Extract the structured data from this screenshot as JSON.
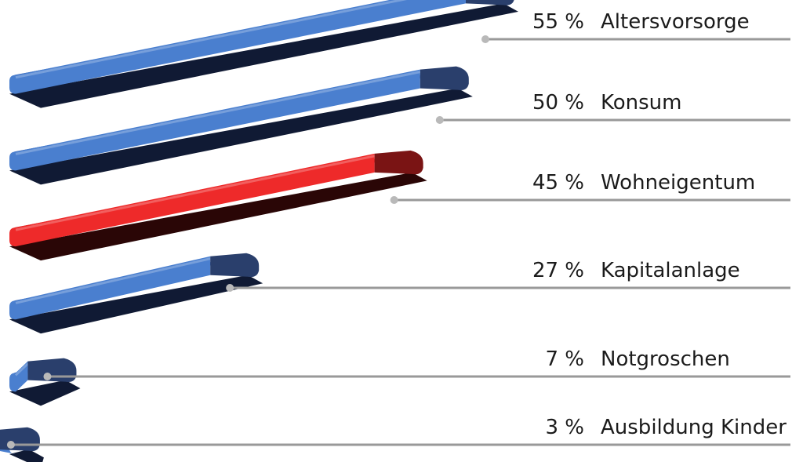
{
  "chart_data": {
    "type": "bar",
    "orientation": "horizontal",
    "categories": [
      "Altersvorsorge",
      "Konsum",
      "Wohneigentum",
      "Kapitalanlage",
      "Notgroschen",
      "Ausbildung Kinder"
    ],
    "values": [
      55,
      50,
      45,
      27,
      7,
      3
    ],
    "value_labels": [
      "55 %",
      "50 %",
      "45 %",
      "27 %",
      "7 %",
      "3 %"
    ],
    "unit": "%",
    "highlighted_category": "Wohneigentum",
    "colors": {
      "default_front": "#4a7fcf",
      "default_top": "#2e5aa8",
      "default_shadow": "#101a34",
      "default_end": "#2a3f6c",
      "highlight_front": "#ee2a2a",
      "highlight_top": "#c81717",
      "highlight_shadow": "#2a0606",
      "highlight_end": "#7a1414",
      "leader_line": "#999999",
      "text": "#1b1b1b"
    },
    "grid": false,
    "legend": "none"
  }
}
